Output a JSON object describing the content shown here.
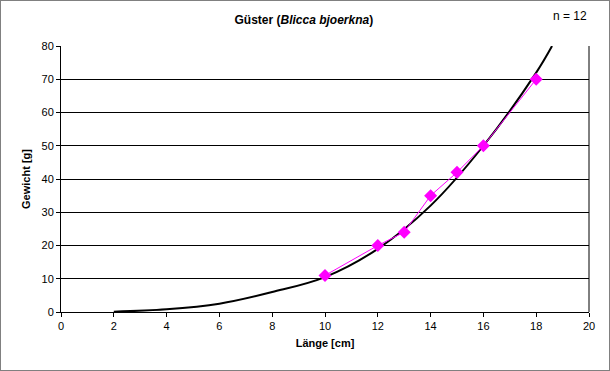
{
  "chart_data": {
    "type": "scatter",
    "title": "Güster (Blicca bjoerkna)",
    "annotations": [
      "n = 12"
    ],
    "x_label": "Länge [cm]",
    "y_label": "Gewicht [g]",
    "xlim": [
      0,
      20
    ],
    "xticks": [
      0,
      2,
      4,
      6,
      8,
      10,
      12,
      14,
      16,
      18,
      20
    ],
    "ylim": [
      0,
      80
    ],
    "yticks": [
      0,
      10,
      20,
      30,
      40,
      50,
      60,
      70,
      80
    ],
    "grid": true,
    "series": [
      {
        "type": "line",
        "color": "#000000",
        "line_style": "solid",
        "x": [
          2,
          4,
          6,
          8,
          10,
          12,
          14,
          16,
          18,
          18.6
        ],
        "values": [
          0.1,
          0.8,
          2.5,
          6,
          10.5,
          19,
          32,
          50,
          72,
          80
        ]
      },
      {
        "type": "scatter",
        "color": "#ff00ff",
        "marker": "diamond",
        "line_style": "solid",
        "x": [
          10,
          12,
          13,
          14,
          15,
          16,
          18
        ],
        "values": [
          11,
          20,
          24,
          35,
          42,
          50,
          70
        ]
      }
    ]
  }
}
